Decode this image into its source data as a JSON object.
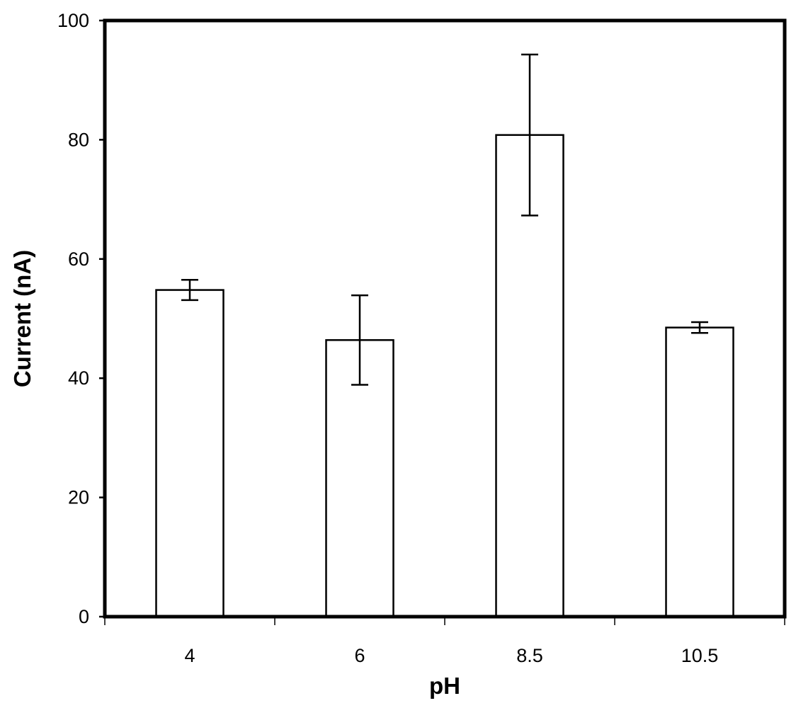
{
  "chart_data": {
    "type": "bar",
    "title": "",
    "xlabel": "pH",
    "ylabel": "Current (nA)",
    "categories": [
      "4",
      "6",
      "8.5",
      "10.5"
    ],
    "values": [
      54.8,
      46.4,
      80.8,
      48.5
    ],
    "errors": [
      1.7,
      7.5,
      13.5,
      0.9
    ],
    "ylim": [
      0,
      100
    ],
    "yticks": [
      0,
      20,
      40,
      60,
      80,
      100
    ],
    "grid": false,
    "legend": "none",
    "bar_fill": "#ffffff",
    "bar_stroke": "#000000"
  }
}
